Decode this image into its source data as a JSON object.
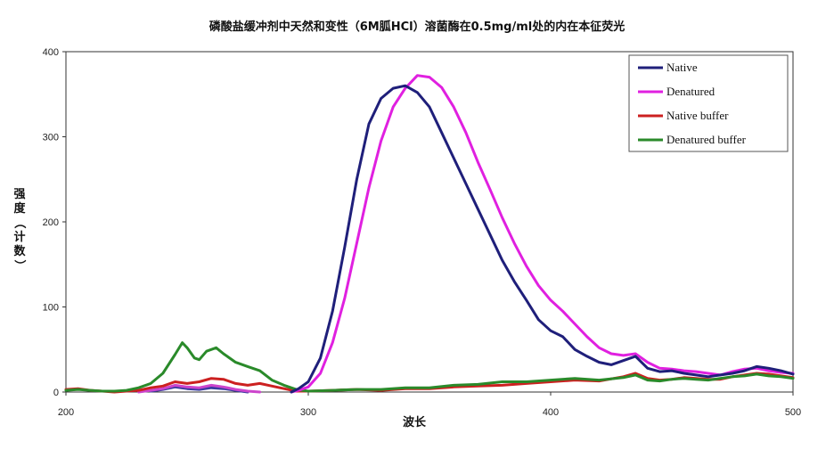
{
  "chart_data": {
    "type": "line",
    "title": "磷酸盐缓冲剂中天然和变性（6M胍HCl）溶菌酶在0.5mg/ml处的内在本征荧光",
    "xlabel": "波长",
    "ylabel_chars": [
      "强",
      "度",
      "（",
      "计",
      "数",
      "）"
    ],
    "xlim": [
      200,
      500
    ],
    "ylim": [
      0,
      400
    ],
    "x_ticks": [
      "200",
      "300",
      "400",
      "500"
    ],
    "y_ticks": [
      "0",
      "100",
      "200",
      "300",
      "400"
    ],
    "grid": false,
    "legend_position": "top-right",
    "series": [
      {
        "name": "Native",
        "color": "#1f1f7a",
        "points": [
          [
            293,
            0
          ],
          [
            296,
            4
          ],
          [
            300,
            12
          ],
          [
            305,
            40
          ],
          [
            310,
            95
          ],
          [
            315,
            170
          ],
          [
            320,
            250
          ],
          [
            325,
            315
          ],
          [
            330,
            345
          ],
          [
            335,
            357
          ],
          [
            340,
            360
          ],
          [
            345,
            352
          ],
          [
            350,
            335
          ],
          [
            355,
            305
          ],
          [
            360,
            275
          ],
          [
            365,
            245
          ],
          [
            370,
            215
          ],
          [
            375,
            185
          ],
          [
            380,
            155
          ],
          [
            385,
            130
          ],
          [
            390,
            108
          ],
          [
            395,
            85
          ],
          [
            400,
            72
          ],
          [
            405,
            65
          ],
          [
            410,
            50
          ],
          [
            415,
            42
          ],
          [
            420,
            35
          ],
          [
            425,
            32
          ],
          [
            430,
            37
          ],
          [
            435,
            42
          ],
          [
            440,
            28
          ],
          [
            445,
            24
          ],
          [
            450,
            25
          ],
          [
            455,
            22
          ],
          [
            460,
            20
          ],
          [
            465,
            18
          ],
          [
            470,
            20
          ],
          [
            475,
            22
          ],
          [
            480,
            25
          ],
          [
            485,
            30
          ],
          [
            490,
            28
          ],
          [
            495,
            25
          ],
          [
            500,
            21
          ]
        ]
      },
      {
        "name": "Denatured",
        "color": "#e020e0",
        "points": [
          [
            293,
            0
          ],
          [
            296,
            2
          ],
          [
            300,
            6
          ],
          [
            305,
            22
          ],
          [
            310,
            58
          ],
          [
            315,
            110
          ],
          [
            320,
            175
          ],
          [
            325,
            240
          ],
          [
            330,
            295
          ],
          [
            335,
            335
          ],
          [
            340,
            357
          ],
          [
            345,
            372
          ],
          [
            350,
            370
          ],
          [
            355,
            358
          ],
          [
            360,
            335
          ],
          [
            365,
            305
          ],
          [
            370,
            270
          ],
          [
            375,
            238
          ],
          [
            380,
            205
          ],
          [
            385,
            175
          ],
          [
            390,
            148
          ],
          [
            395,
            125
          ],
          [
            400,
            108
          ],
          [
            405,
            95
          ],
          [
            410,
            80
          ],
          [
            415,
            65
          ],
          [
            420,
            52
          ],
          [
            425,
            45
          ],
          [
            430,
            43
          ],
          [
            435,
            45
          ],
          [
            440,
            35
          ],
          [
            445,
            28
          ],
          [
            450,
            27
          ],
          [
            455,
            25
          ],
          [
            460,
            24
          ],
          [
            465,
            22
          ],
          [
            470,
            20
          ],
          [
            475,
            24
          ],
          [
            480,
            27
          ],
          [
            485,
            28
          ],
          [
            490,
            25
          ],
          [
            495,
            23
          ],
          [
            500,
            22
          ]
        ]
      },
      {
        "name": "Native buffer",
        "color": "#cc2020",
        "points": [
          [
            200,
            3
          ],
          [
            205,
            4
          ],
          [
            210,
            2
          ],
          [
            215,
            1
          ],
          [
            220,
            0
          ],
          [
            225,
            1
          ],
          [
            230,
            2
          ],
          [
            235,
            5
          ],
          [
            240,
            7
          ],
          [
            245,
            12
          ],
          [
            250,
            10
          ],
          [
            255,
            12
          ],
          [
            260,
            16
          ],
          [
            265,
            15
          ],
          [
            270,
            10
          ],
          [
            275,
            8
          ],
          [
            280,
            10
          ],
          [
            285,
            7
          ],
          [
            290,
            4
          ],
          [
            295,
            1
          ],
          [
            300,
            1
          ],
          [
            310,
            2
          ],
          [
            320,
            3
          ],
          [
            330,
            2
          ],
          [
            340,
            4
          ],
          [
            350,
            4
          ],
          [
            360,
            6
          ],
          [
            370,
            7
          ],
          [
            380,
            8
          ],
          [
            390,
            10
          ],
          [
            400,
            12
          ],
          [
            410,
            14
          ],
          [
            420,
            13
          ],
          [
            430,
            18
          ],
          [
            435,
            22
          ],
          [
            440,
            16
          ],
          [
            445,
            14
          ],
          [
            450,
            15
          ],
          [
            455,
            17
          ],
          [
            460,
            16
          ],
          [
            465,
            15
          ],
          [
            470,
            15
          ],
          [
            475,
            18
          ],
          [
            480,
            20
          ],
          [
            485,
            22
          ],
          [
            490,
            21
          ],
          [
            495,
            19
          ],
          [
            500,
            17
          ]
        ]
      },
      {
        "name": "Denatured buffer",
        "color": "#2a8a2a",
        "points": [
          [
            200,
            2
          ],
          [
            205,
            3
          ],
          [
            210,
            2
          ],
          [
            215,
            1
          ],
          [
            220,
            1
          ],
          [
            225,
            2
          ],
          [
            230,
            5
          ],
          [
            235,
            10
          ],
          [
            240,
            22
          ],
          [
            245,
            44
          ],
          [
            248,
            58
          ],
          [
            250,
            52
          ],
          [
            253,
            40
          ],
          [
            255,
            38
          ],
          [
            258,
            48
          ],
          [
            262,
            52
          ],
          [
            265,
            45
          ],
          [
            270,
            35
          ],
          [
            275,
            30
          ],
          [
            280,
            25
          ],
          [
            285,
            14
          ],
          [
            290,
            8
          ],
          [
            295,
            3
          ],
          [
            300,
            1
          ],
          [
            310,
            2
          ],
          [
            320,
            3
          ],
          [
            330,
            3
          ],
          [
            340,
            5
          ],
          [
            350,
            5
          ],
          [
            360,
            8
          ],
          [
            370,
            9
          ],
          [
            380,
            12
          ],
          [
            390,
            12
          ],
          [
            400,
            14
          ],
          [
            410,
            16
          ],
          [
            420,
            14
          ],
          [
            430,
            17
          ],
          [
            435,
            20
          ],
          [
            440,
            14
          ],
          [
            445,
            13
          ],
          [
            450,
            15
          ],
          [
            455,
            16
          ],
          [
            460,
            15
          ],
          [
            465,
            14
          ],
          [
            470,
            16
          ],
          [
            475,
            18
          ],
          [
            480,
            19
          ],
          [
            485,
            21
          ],
          [
            490,
            19
          ],
          [
            495,
            18
          ],
          [
            500,
            16
          ]
        ]
      },
      {
        "name": "",
        "color": "#cc44cc",
        "points": [
          [
            230,
            0
          ],
          [
            235,
            2
          ],
          [
            240,
            4
          ],
          [
            245,
            8
          ],
          [
            250,
            6
          ],
          [
            255,
            5
          ],
          [
            260,
            8
          ],
          [
            265,
            6
          ],
          [
            270,
            3
          ],
          [
            275,
            1
          ],
          [
            280,
            0
          ]
        ]
      },
      {
        "name": "",
        "color": "#3a3aa0",
        "points": [
          [
            235,
            1
          ],
          [
            240,
            3
          ],
          [
            245,
            6
          ],
          [
            250,
            4
          ],
          [
            255,
            3
          ],
          [
            260,
            5
          ],
          [
            265,
            4
          ],
          [
            270,
            2
          ],
          [
            275,
            0
          ]
        ]
      }
    ]
  }
}
